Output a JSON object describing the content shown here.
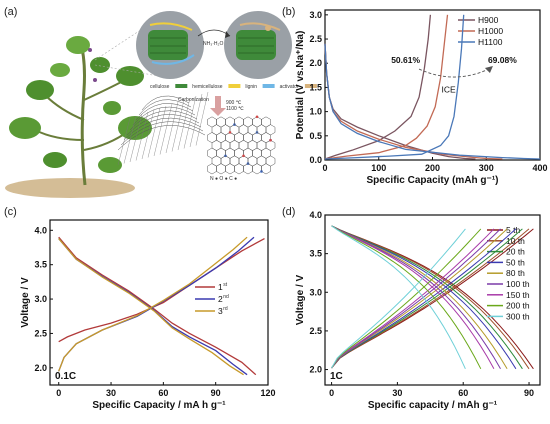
{
  "panels": {
    "a": {
      "label": "(a)",
      "reagent": "NH₃·H₂O",
      "legend": [
        {
          "text": "cellulose",
          "color": "#3f8a3a"
        },
        {
          "text": "hemicellulose",
          "color": "#f0cf3a"
        },
        {
          "text": "lignin",
          "color": "#6fb7e6"
        },
        {
          "text": "activator",
          "color": "#d8b37d"
        }
      ],
      "process": [
        "Carbonization",
        "900 ℃",
        "1100 ℃"
      ],
      "atoms": "N ● O ● C ●"
    }
  },
  "chart_data": [
    {
      "id": "b",
      "label": "(b)",
      "type": "line",
      "xlabel": "Specific Capacity (mAh g⁻¹)",
      "ylabel": "Potential (V vs.Na⁺/Na)",
      "xlim": [
        0,
        400
      ],
      "ylim": [
        0,
        3.1
      ],
      "xticks": [
        0,
        100,
        200,
        300,
        400
      ],
      "yticks": [
        0.0,
        0.5,
        1.0,
        1.5,
        2.0,
        2.5,
        3.0
      ],
      "legend_position": "top-right",
      "series": [
        {
          "name": "H900",
          "color": "#7a5560",
          "discharge": [
            [
              0,
              2.4
            ],
            [
              3,
              1.8
            ],
            [
              8,
              1.3
            ],
            [
              15,
              1.05
            ],
            [
              30,
              0.85
            ],
            [
              60,
              0.68
            ],
            [
              100,
              0.5
            ],
            [
              150,
              0.3
            ],
            [
              200,
              0.14
            ],
            [
              230,
              0.07
            ],
            [
              260,
              0.03
            ],
            [
              280,
              0.02
            ]
          ],
          "charge": [
            [
              0,
              0.02
            ],
            [
              20,
              0.1
            ],
            [
              50,
              0.2
            ],
            [
              100,
              0.4
            ],
            [
              130,
              0.6
            ],
            [
              160,
              0.9
            ],
            [
              175,
              1.3
            ],
            [
              185,
              1.9
            ],
            [
              192,
              2.5
            ],
            [
              196,
              3.0
            ]
          ]
        },
        {
          "name": "H1000",
          "color": "#c26a55",
          "discharge": [
            [
              0,
              2.4
            ],
            [
              3,
              1.8
            ],
            [
              8,
              1.3
            ],
            [
              15,
              1.0
            ],
            [
              30,
              0.8
            ],
            [
              60,
              0.6
            ],
            [
              100,
              0.43
            ],
            [
              150,
              0.26
            ],
            [
              220,
              0.12
            ],
            [
              270,
              0.06
            ],
            [
              300,
              0.03
            ],
            [
              330,
              0.02
            ]
          ],
          "charge": [
            [
              0,
              0.02
            ],
            [
              40,
              0.08
            ],
            [
              100,
              0.15
            ],
            [
              150,
              0.3
            ],
            [
              170,
              0.45
            ],
            [
              190,
              0.7
            ],
            [
              205,
              1.1
            ],
            [
              215,
              1.7
            ],
            [
              222,
              2.4
            ],
            [
              228,
              3.0
            ]
          ]
        },
        {
          "name": "H1100",
          "color": "#4a78b8",
          "discharge": [
            [
              0,
              2.4
            ],
            [
              3,
              1.8
            ],
            [
              8,
              1.3
            ],
            [
              15,
              1.0
            ],
            [
              30,
              0.75
            ],
            [
              60,
              0.55
            ],
            [
              100,
              0.38
            ],
            [
              150,
              0.22
            ],
            [
              250,
              0.1
            ],
            [
              330,
              0.05
            ],
            [
              370,
              0.03
            ],
            [
              400,
              0.02
            ]
          ],
          "charge": [
            [
              0,
              0.02
            ],
            [
              60,
              0.05
            ],
            [
              120,
              0.08
            ],
            [
              180,
              0.12
            ],
            [
              215,
              0.3
            ],
            [
              230,
              0.5
            ],
            [
              240,
              0.9
            ],
            [
              248,
              1.6
            ],
            [
              254,
              2.3
            ],
            [
              258,
              3.0
            ]
          ]
        }
      ],
      "annotations": [
        {
          "text": "50.61%",
          "x": 150,
          "y": 2.0,
          "color": "#444444"
        },
        {
          "text": "69.08%",
          "x": 330,
          "y": 2.0,
          "color": "#3c7ec9"
        },
        {
          "text": "ICE",
          "x": 230,
          "y": 1.4,
          "color": "#444444"
        }
      ]
    },
    {
      "id": "c",
      "label": "(c)",
      "type": "line",
      "xlabel": "Specific  Capacity / mA h g⁻¹",
      "ylabel": "Voltage / V",
      "xlim": [
        -5,
        120
      ],
      "ylim": [
        1.75,
        4.15
      ],
      "xticks": [
        0,
        30,
        60,
        90,
        120
      ],
      "yticks": [
        2.0,
        2.5,
        3.0,
        3.5,
        4.0
      ],
      "legend_position": "center-right",
      "rate_label": "0.1C",
      "series": [
        {
          "name": "1",
          "sup": "st",
          "color": "#b23a3a",
          "charge": [
            [
              0,
              2.38
            ],
            [
              5,
              2.45
            ],
            [
              15,
              2.55
            ],
            [
              30,
              2.65
            ],
            [
              45,
              2.78
            ],
            [
              60,
              2.95
            ],
            [
              75,
              3.2
            ],
            [
              90,
              3.45
            ],
            [
              105,
              3.7
            ],
            [
              118,
              3.88
            ]
          ],
          "discharge": [
            [
              0,
              3.9
            ],
            [
              10,
              3.6
            ],
            [
              25,
              3.35
            ],
            [
              40,
              3.12
            ],
            [
              55,
              2.85
            ],
            [
              65,
              2.65
            ],
            [
              75,
              2.5
            ],
            [
              90,
              2.3
            ],
            [
              105,
              2.08
            ],
            [
              113,
              1.9
            ]
          ]
        },
        {
          "name": "2",
          "sup": "nd",
          "color": "#3a3ab0",
          "charge": [
            [
              0,
              1.95
            ],
            [
              3,
              2.15
            ],
            [
              10,
              2.35
            ],
            [
              25,
              2.55
            ],
            [
              45,
              2.75
            ],
            [
              60,
              2.97
            ],
            [
              75,
              3.2
            ],
            [
              90,
              3.45
            ],
            [
              103,
              3.7
            ],
            [
              112,
              3.9
            ]
          ],
          "discharge": [
            [
              0,
              3.88
            ],
            [
              10,
              3.58
            ],
            [
              25,
              3.33
            ],
            [
              40,
              3.1
            ],
            [
              55,
              2.83
            ],
            [
              65,
              2.6
            ],
            [
              75,
              2.45
            ],
            [
              90,
              2.25
            ],
            [
              100,
              2.05
            ],
            [
              108,
              1.9
            ]
          ]
        },
        {
          "name": "3",
          "sup": "rd",
          "color": "#c79a2a",
          "charge": [
            [
              0,
              1.95
            ],
            [
              3,
              2.15
            ],
            [
              10,
              2.35
            ],
            [
              25,
              2.55
            ],
            [
              45,
              2.76
            ],
            [
              60,
              2.98
            ],
            [
              75,
              3.22
            ],
            [
              88,
              3.48
            ],
            [
              100,
              3.72
            ],
            [
              108,
              3.9
            ]
          ],
          "discharge": [
            [
              0,
              3.88
            ],
            [
              10,
              3.58
            ],
            [
              25,
              3.32
            ],
            [
              40,
              3.09
            ],
            [
              55,
              2.82
            ],
            [
              65,
              2.58
            ],
            [
              75,
              2.42
            ],
            [
              88,
              2.22
            ],
            [
              98,
              2.03
            ],
            [
              106,
              1.9
            ]
          ]
        }
      ]
    },
    {
      "id": "d",
      "label": "(d)",
      "type": "line",
      "xlabel": "Specific capacity / mAh g⁻¹",
      "ylabel": "Voltage / V",
      "xlim": [
        -3,
        95
      ],
      "ylim": [
        1.8,
        4.0
      ],
      "xticks": [
        0,
        30,
        60,
        90
      ],
      "yticks": [
        2.0,
        2.5,
        3.0,
        3.5,
        4.0
      ],
      "legend_position": "right",
      "rate_label": "1C",
      "series": [
        {
          "name": "5 th",
          "color": "#8b1a1a",
          "cap": 92
        },
        {
          "name": "10 th",
          "color": "#a0522d",
          "cap": 90
        },
        {
          "name": "20 th",
          "color": "#2e8b3a",
          "cap": 87
        },
        {
          "name": "50 th",
          "color": "#3a3ab0",
          "cap": 84
        },
        {
          "name": "80 th",
          "color": "#b59b2a",
          "cap": 80
        },
        {
          "name": "100 th",
          "color": "#7a3aa8",
          "cap": 77
        },
        {
          "name": "150 th",
          "color": "#a83aa8",
          "cap": 74
        },
        {
          "name": "200 th",
          "color": "#6aa81a",
          "cap": 68
        },
        {
          "name": "300 th",
          "color": "#6fd0d8",
          "cap": 61
        }
      ]
    }
  ]
}
